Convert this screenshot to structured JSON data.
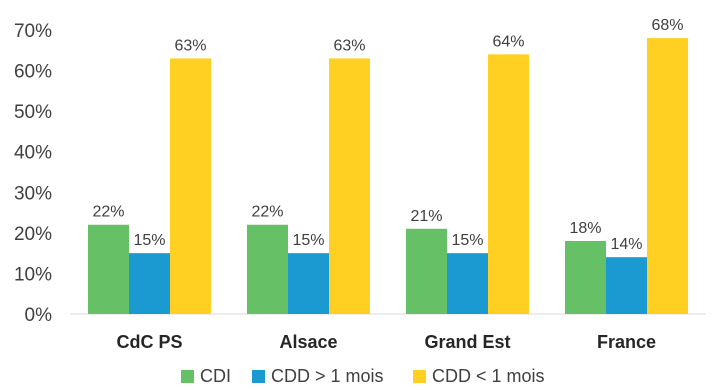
{
  "chart_data": {
    "type": "bar",
    "categories": [
      "CdC PS",
      "Alsace",
      "Grand Est",
      "France"
    ],
    "series": [
      {
        "name": "CDI",
        "color": "#66C166",
        "values": [
          0.22,
          0.22,
          0.21,
          0.18
        ],
        "labels": [
          "22%",
          "22%",
          "21%",
          "18%"
        ]
      },
      {
        "name": "CDD > 1 mois",
        "color": "#1B9AD1",
        "values": [
          0.15,
          0.15,
          0.15,
          0.14
        ],
        "labels": [
          "15%",
          "15%",
          "15%",
          "14%"
        ]
      },
      {
        "name": "CDD < 1 mois",
        "color": "#FFCF21",
        "values": [
          0.63,
          0.63,
          0.64,
          0.68
        ],
        "labels": [
          "63%",
          "63%",
          "64%",
          "68%"
        ]
      }
    ],
    "y_ticks": [
      0,
      0.1,
      0.2,
      0.3,
      0.4,
      0.5,
      0.6,
      0.7
    ],
    "y_tick_labels": [
      "0%",
      "10%",
      "20%",
      "30%",
      "40%",
      "50%",
      "60%",
      "70%"
    ],
    "ylim": [
      0,
      0.7
    ],
    "grid": false,
    "legend_position": "bottom"
  }
}
